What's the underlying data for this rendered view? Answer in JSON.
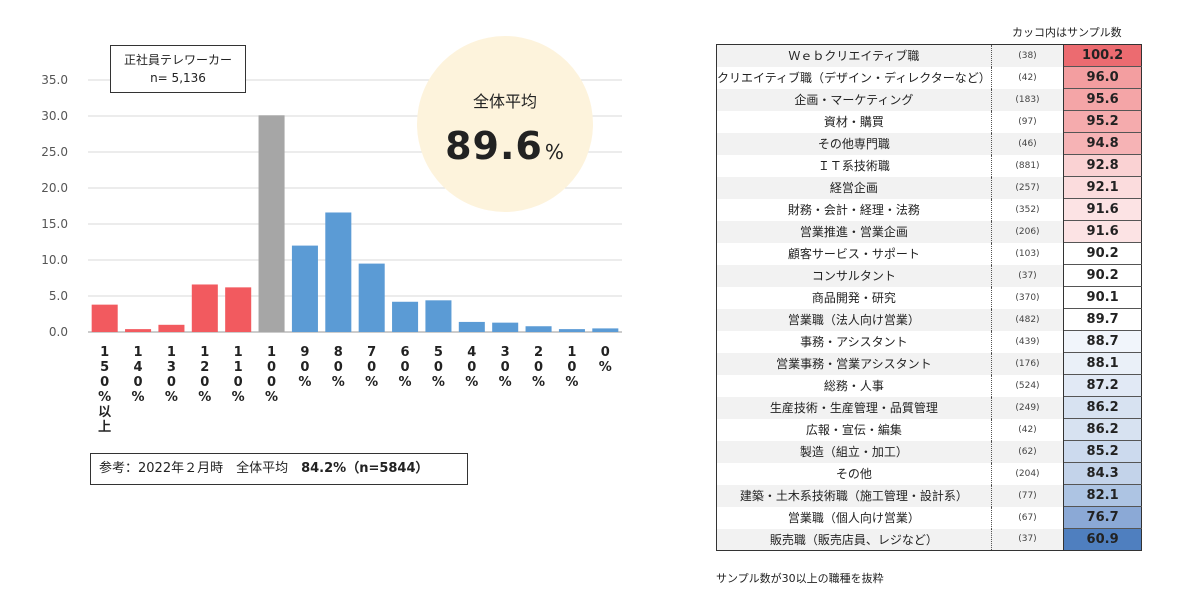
{
  "chart_data": {
    "type": "bar",
    "categories": [
      "150%以上",
      "140%",
      "130%",
      "120%",
      "110%",
      "100%",
      "90%",
      "80%",
      "70%",
      "60%",
      "50%",
      "40%",
      "30%",
      "20%",
      "10%",
      "0%"
    ],
    "values": [
      3.8,
      0.4,
      1.0,
      6.6,
      6.2,
      30.1,
      12.0,
      16.6,
      9.5,
      4.2,
      4.4,
      1.4,
      1.3,
      0.8,
      0.4,
      0.5
    ],
    "ylim": [
      0,
      35
    ],
    "yticks": [
      "0.0",
      "5.0",
      "10.0",
      "15.0",
      "20.0",
      "25.0",
      "30.0",
      "35.0"
    ],
    "grid": true,
    "bar_colors": {
      "above": "#f25a5f",
      "equal": "#a6a6a6",
      "below": "#5b9bd5"
    }
  },
  "legend": {
    "line1": "正社員テレワーカー",
    "line2": "n= 5,136"
  },
  "average": {
    "label": "全体平均",
    "value": "89.6",
    "unit": "%"
  },
  "reference": {
    "prefix": "参考：2022年２月時　全体平均　",
    "value": "84.2%（n=5844）"
  },
  "table": {
    "caption": "カッコ内はサンプル数",
    "note": "サンプル数が30以上の職種を抜粋",
    "rows": [
      {
        "name": "Ｗｅｂクリエイティブ職",
        "n": "(38)",
        "value": "100.2",
        "color": "#ec6b70"
      },
      {
        "name": "クリエイティブ職（デザイン・ディレクターなど）",
        "n": "(42)",
        "value": "96.0",
        "color": "#f39ea0"
      },
      {
        "name": "企画・マーケティング",
        "n": "(183)",
        "value": "95.6",
        "color": "#f4a5a7"
      },
      {
        "name": "資材・購買",
        "n": "(97)",
        "value": "95.2",
        "color": "#f5abad"
      },
      {
        "name": "その他専門職",
        "n": "(46)",
        "value": "94.8",
        "color": "#f6b3b5"
      },
      {
        "name": "ＩＴ系技術職",
        "n": "(881)",
        "value": "92.8",
        "color": "#fad2d3"
      },
      {
        "name": "経営企画",
        "n": "(257)",
        "value": "92.1",
        "color": "#fbdcdd"
      },
      {
        "name": "財務・会計・経理・法務",
        "n": "(352)",
        "value": "91.6",
        "color": "#fce3e4"
      },
      {
        "name": "営業推進・営業企画",
        "n": "(206)",
        "value": "91.6",
        "color": "#fce3e4"
      },
      {
        "name": "顧客サービス・サポート",
        "n": "(103)",
        "value": "90.2",
        "color": "#ffffff"
      },
      {
        "name": "コンサルタント",
        "n": "(37)",
        "value": "90.2",
        "color": "#ffffff"
      },
      {
        "name": "商品開発・研究",
        "n": "(370)",
        "value": "90.1",
        "color": "#ffffff"
      },
      {
        "name": "営業職（法人向け営業）",
        "n": "(482)",
        "value": "89.7",
        "color": "#ffffff"
      },
      {
        "name": "事務・アシスタント",
        "n": "(439)",
        "value": "88.7",
        "color": "#f1f5fb"
      },
      {
        "name": "営業事務・営業アシスタント",
        "n": "(176)",
        "value": "88.1",
        "color": "#eaf0f8"
      },
      {
        "name": "総務・人事",
        "n": "(524)",
        "value": "87.2",
        "color": "#e1e9f5"
      },
      {
        "name": "生産技術・生産管理・品質管理",
        "n": "(249)",
        "value": "86.2",
        "color": "#d7e2f1"
      },
      {
        "name": "広報・宣伝・編集",
        "n": "(42)",
        "value": "86.2",
        "color": "#d7e2f1"
      },
      {
        "name": "製造（組立・加工）",
        "n": "(62)",
        "value": "85.2",
        "color": "#ccdaee"
      },
      {
        "name": "その他",
        "n": "(204)",
        "value": "84.3",
        "color": "#c3d3ea"
      },
      {
        "name": "建築・土木系技術職（施工管理・設計系）",
        "n": "(77)",
        "value": "82.1",
        "color": "#adc4e3"
      },
      {
        "name": "営業職（個人向け営業）",
        "n": "(67)",
        "value": "76.7",
        "color": "#8ba9d6"
      },
      {
        "name": "販売職（販売店員、レジなど）",
        "n": "(37)",
        "value": "60.9",
        "color": "#4f7fbf"
      }
    ]
  }
}
